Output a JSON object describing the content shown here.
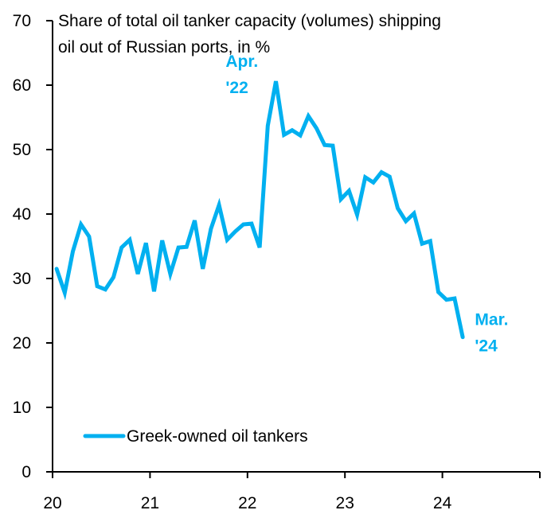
{
  "chart_data": {
    "type": "line",
    "title": "Share of total oil tanker capacity (volumes) shipping oil out of Russian ports, in %",
    "title_lines": [
      "Share of total oil tanker capacity (volumes) shipping",
      "oil out of Russian ports, in %"
    ],
    "xlabel": "",
    "ylabel": "",
    "ylim": [
      0,
      70
    ],
    "xlim": [
      2020,
      2025
    ],
    "yticks": [
      0,
      10,
      20,
      30,
      40,
      50,
      60,
      70
    ],
    "xticks": [
      {
        "value": 2020,
        "label": "20"
      },
      {
        "value": 2021,
        "label": "21"
      },
      {
        "value": 2022,
        "label": "22"
      },
      {
        "value": 2023,
        "label": "23"
      },
      {
        "value": 2024,
        "label": "24"
      }
    ],
    "grid": false,
    "legend": {
      "position": "bottom-left",
      "entries": [
        "Greek-owned oil tankers"
      ]
    },
    "series": [
      {
        "name": "Greek-owned oil tankers",
        "color": "#00B0F0",
        "start": "2020-01",
        "frequency": "monthly",
        "values": [
          31.5,
          27.8,
          34.2,
          38.4,
          36.5,
          28.8,
          28.3,
          30.2,
          34.8,
          36.0,
          30.7,
          35.5,
          28.0,
          35.9,
          30.7,
          34.8,
          34.9,
          39.0,
          31.5,
          37.7,
          41.4,
          36.0,
          37.3,
          38.4,
          38.5,
          34.8,
          53.7,
          60.6,
          52.3,
          53.0,
          52.2,
          55.2,
          53.3,
          50.7,
          50.6,
          42.3,
          43.6,
          39.9,
          45.7,
          44.9,
          46.5,
          45.8,
          40.9,
          38.9,
          40.1,
          35.4,
          35.8,
          27.9,
          26.7,
          26.9,
          20.9
        ]
      }
    ],
    "annotations": [
      {
        "lines": [
          "Apr.",
          "'22"
        ],
        "x": 2022.25,
        "y": 60.6,
        "color": "#00B0F0"
      },
      {
        "lines": [
          "Mar.",
          "'24"
        ],
        "x": 2024.17,
        "y": 20.9,
        "color": "#00B0F0"
      }
    ]
  }
}
